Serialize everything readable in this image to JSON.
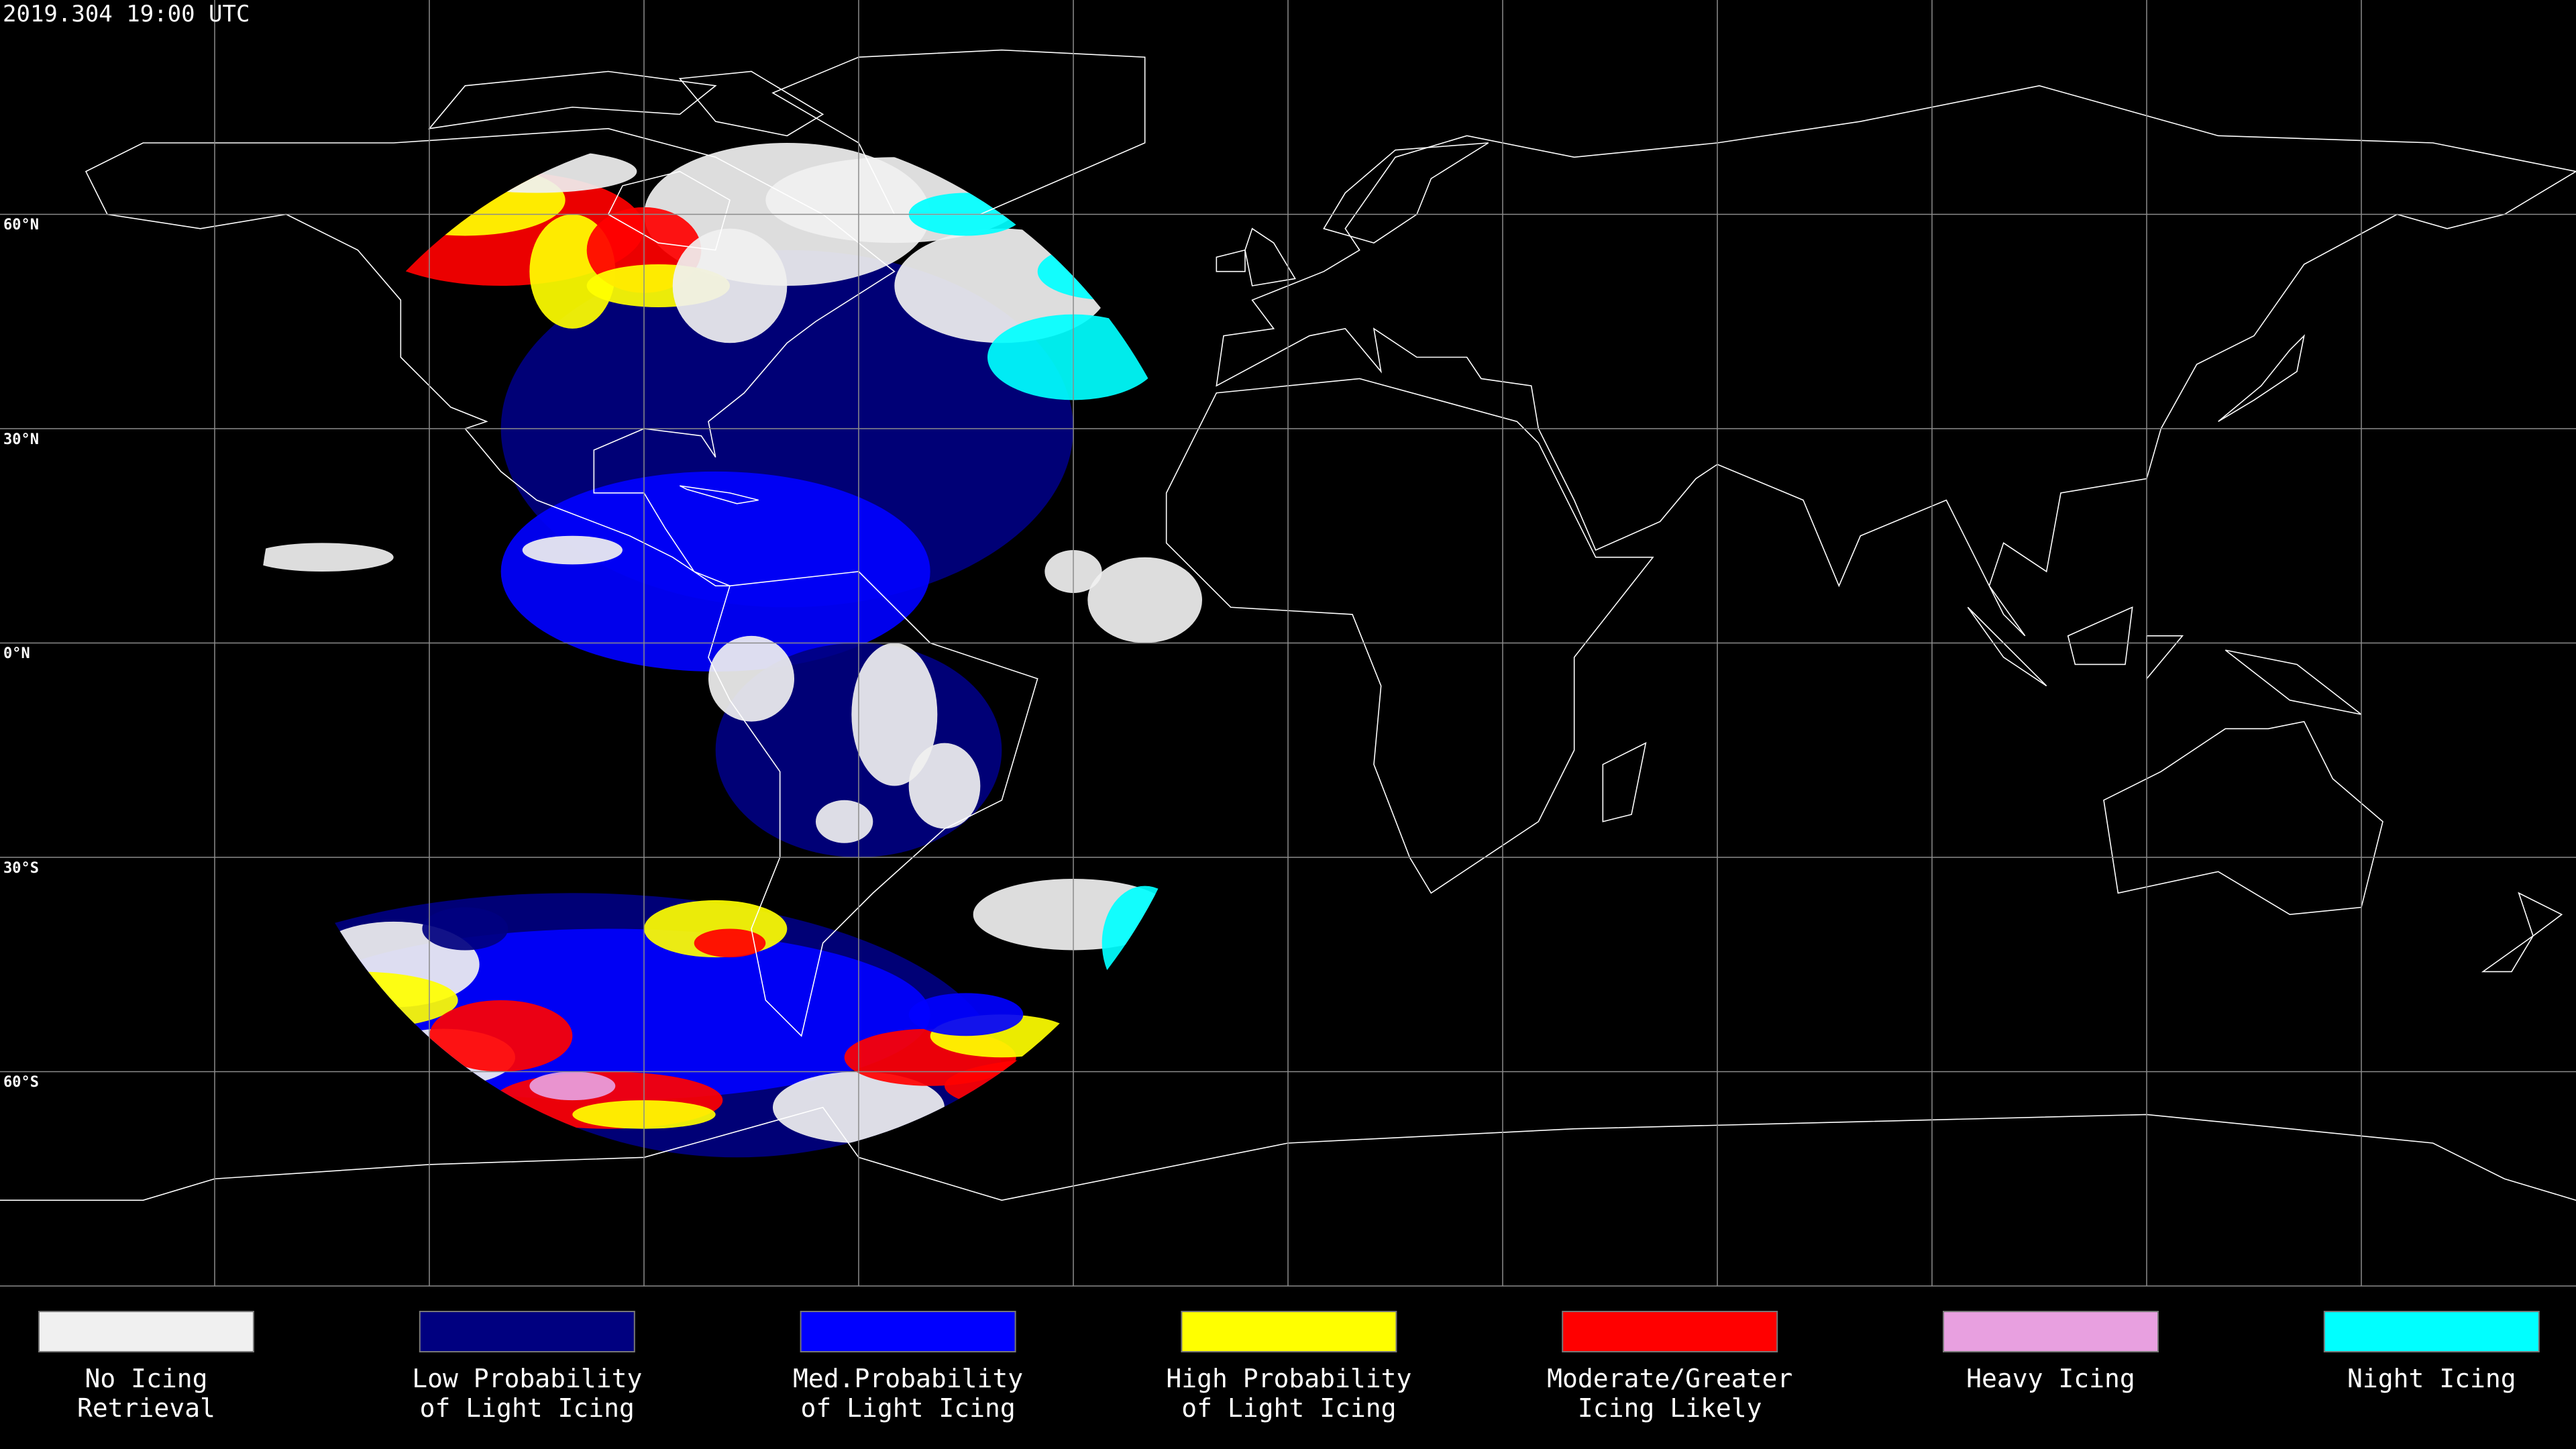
{
  "header": {
    "title": "2019.304 19:00 UTC"
  },
  "map": {
    "lat_labels": [
      "60°N",
      "30°N",
      "0°N",
      "30°S",
      "60°S"
    ]
  },
  "legend": {
    "items": [
      {
        "lines": [
          "No Icing",
          "Retrieval"
        ],
        "color": "#f0f0f0"
      },
      {
        "lines": [
          "Low Probability",
          "of Light Icing"
        ],
        "color": "#000080"
      },
      {
        "lines": [
          "Med.Probability",
          "of Light Icing"
        ],
        "color": "#0000ff"
      },
      {
        "lines": [
          "High Probability",
          "of Light Icing"
        ],
        "color": "#ffff00"
      },
      {
        "lines": [
          "Moderate/Greater",
          "Icing Likely"
        ],
        "color": "#ff0000"
      },
      {
        "lines": [
          "Heavy Icing"
        ],
        "color": "#e8a0e0"
      },
      {
        "lines": [
          "Night Icing"
        ],
        "color": "#00ffff"
      }
    ]
  }
}
